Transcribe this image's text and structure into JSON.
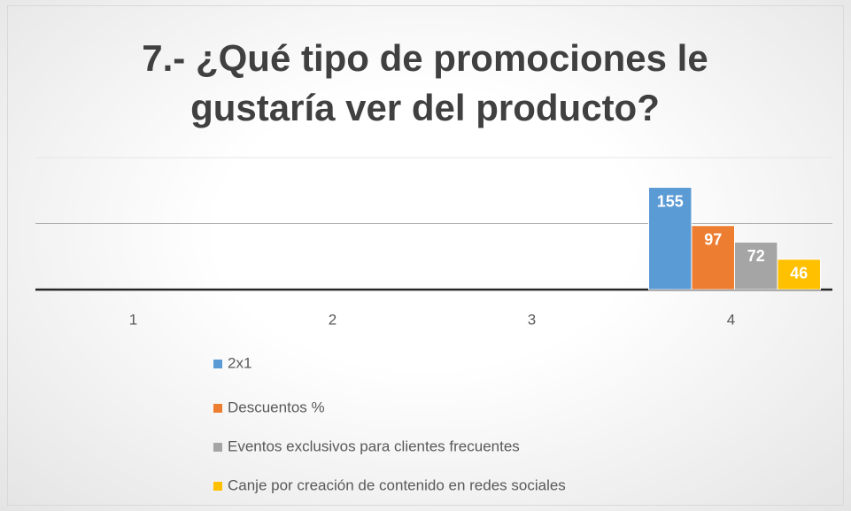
{
  "chart_data": {
    "type": "bar",
    "title": "7.- ¿Qué tipo de promociones le gustaría ver del producto?",
    "categories": [
      "1",
      "2",
      "3",
      "4"
    ],
    "series": [
      {
        "name": "2x1",
        "color": "#5b9bd5",
        "values": [
          null,
          null,
          null,
          155
        ]
      },
      {
        "name": "Descuentos %",
        "color": "#ed7d31",
        "values": [
          null,
          null,
          null,
          97
        ]
      },
      {
        "name": "Eventos exclusivos para clientes frecuentes",
        "color": "#a5a5a5",
        "values": [
          null,
          null,
          null,
          72
        ]
      },
      {
        "name": "Canje por creación de contenido en redes sociales",
        "color": "#ffc000",
        "values": [
          null,
          null,
          null,
          46
        ]
      }
    ],
    "ylim": [
      0,
      200
    ],
    "yticks": [
      0,
      100,
      200
    ],
    "grid": true,
    "legend": "bottom"
  }
}
